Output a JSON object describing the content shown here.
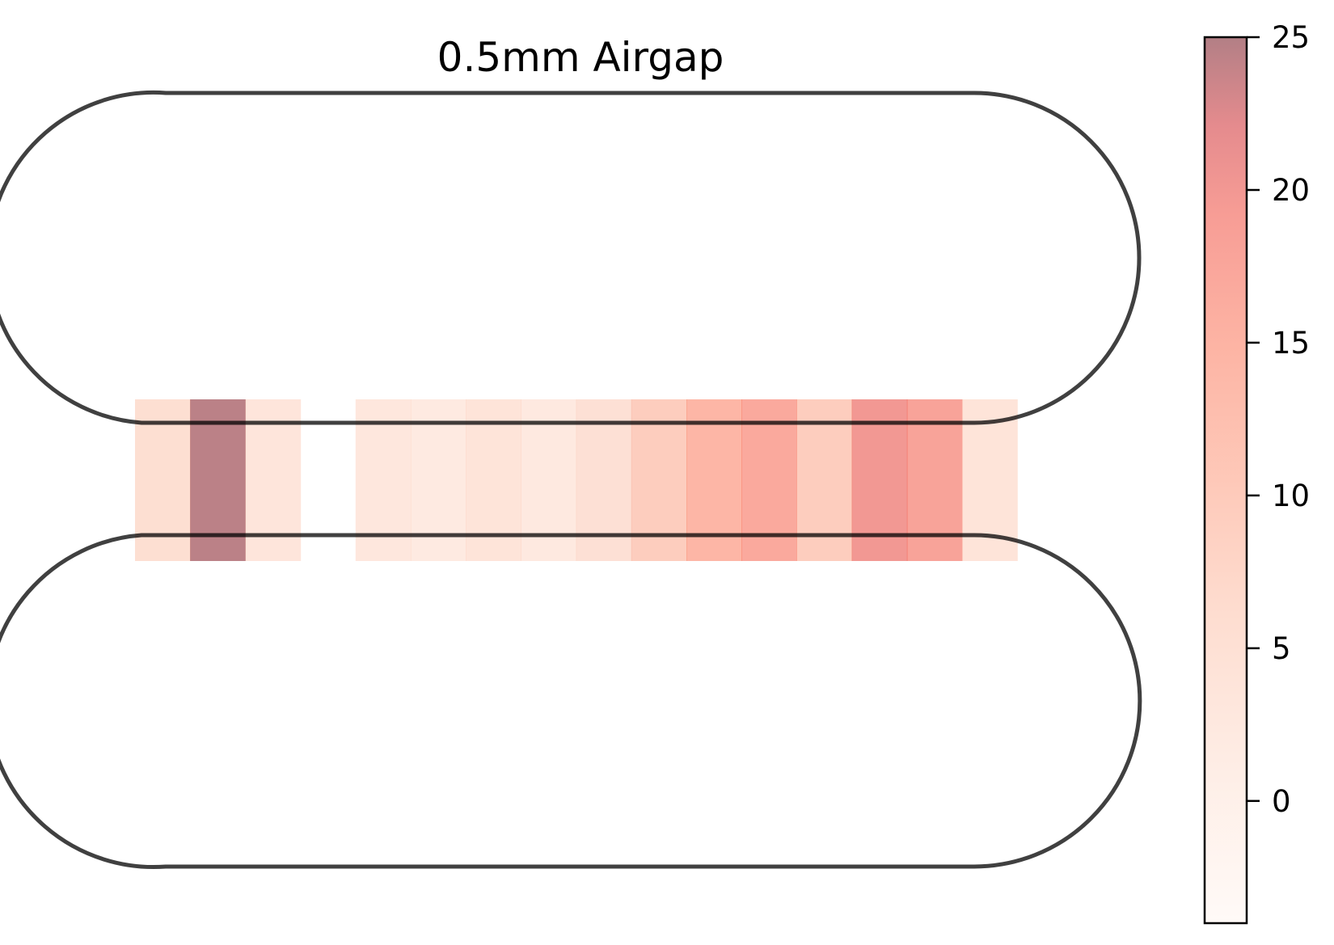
{
  "chart_data": {
    "type": "heatmap",
    "title": "0.5mm Airgap",
    "xlabel": "",
    "ylabel": "",
    "axis_visible": false,
    "grid": false,
    "cells": [
      {
        "index": 0,
        "value": 5.5
      },
      {
        "index": 1,
        "value": 24.5
      },
      {
        "index": 2,
        "value": 3.5
      },
      {
        "index": 3,
        "value": null
      },
      {
        "index": 4,
        "value": 3.0
      },
      {
        "index": 5,
        "value": 2.0
      },
      {
        "index": 6,
        "value": 4.0
      },
      {
        "index": 7,
        "value": 2.2
      },
      {
        "index": 8,
        "value": 5.0
      },
      {
        "index": 9,
        "value": 9.5
      },
      {
        "index": 10,
        "value": 14.5
      },
      {
        "index": 11,
        "value": 17.0
      },
      {
        "index": 12,
        "value": 9.5
      },
      {
        "index": 13,
        "value": 20.0
      },
      {
        "index": 14,
        "value": 18.0
      },
      {
        "index": 15,
        "value": 4.0
      }
    ],
    "colorbar": {
      "min": -4,
      "max": 25,
      "ticks": [
        "25",
        "20",
        "15",
        "10",
        "5",
        "0"
      ],
      "tick_values": [
        25,
        20,
        15,
        10,
        5,
        0
      ],
      "colormap": "Reds",
      "alpha": 0.5,
      "placement": "right"
    },
    "outline_color": "#000000"
  }
}
